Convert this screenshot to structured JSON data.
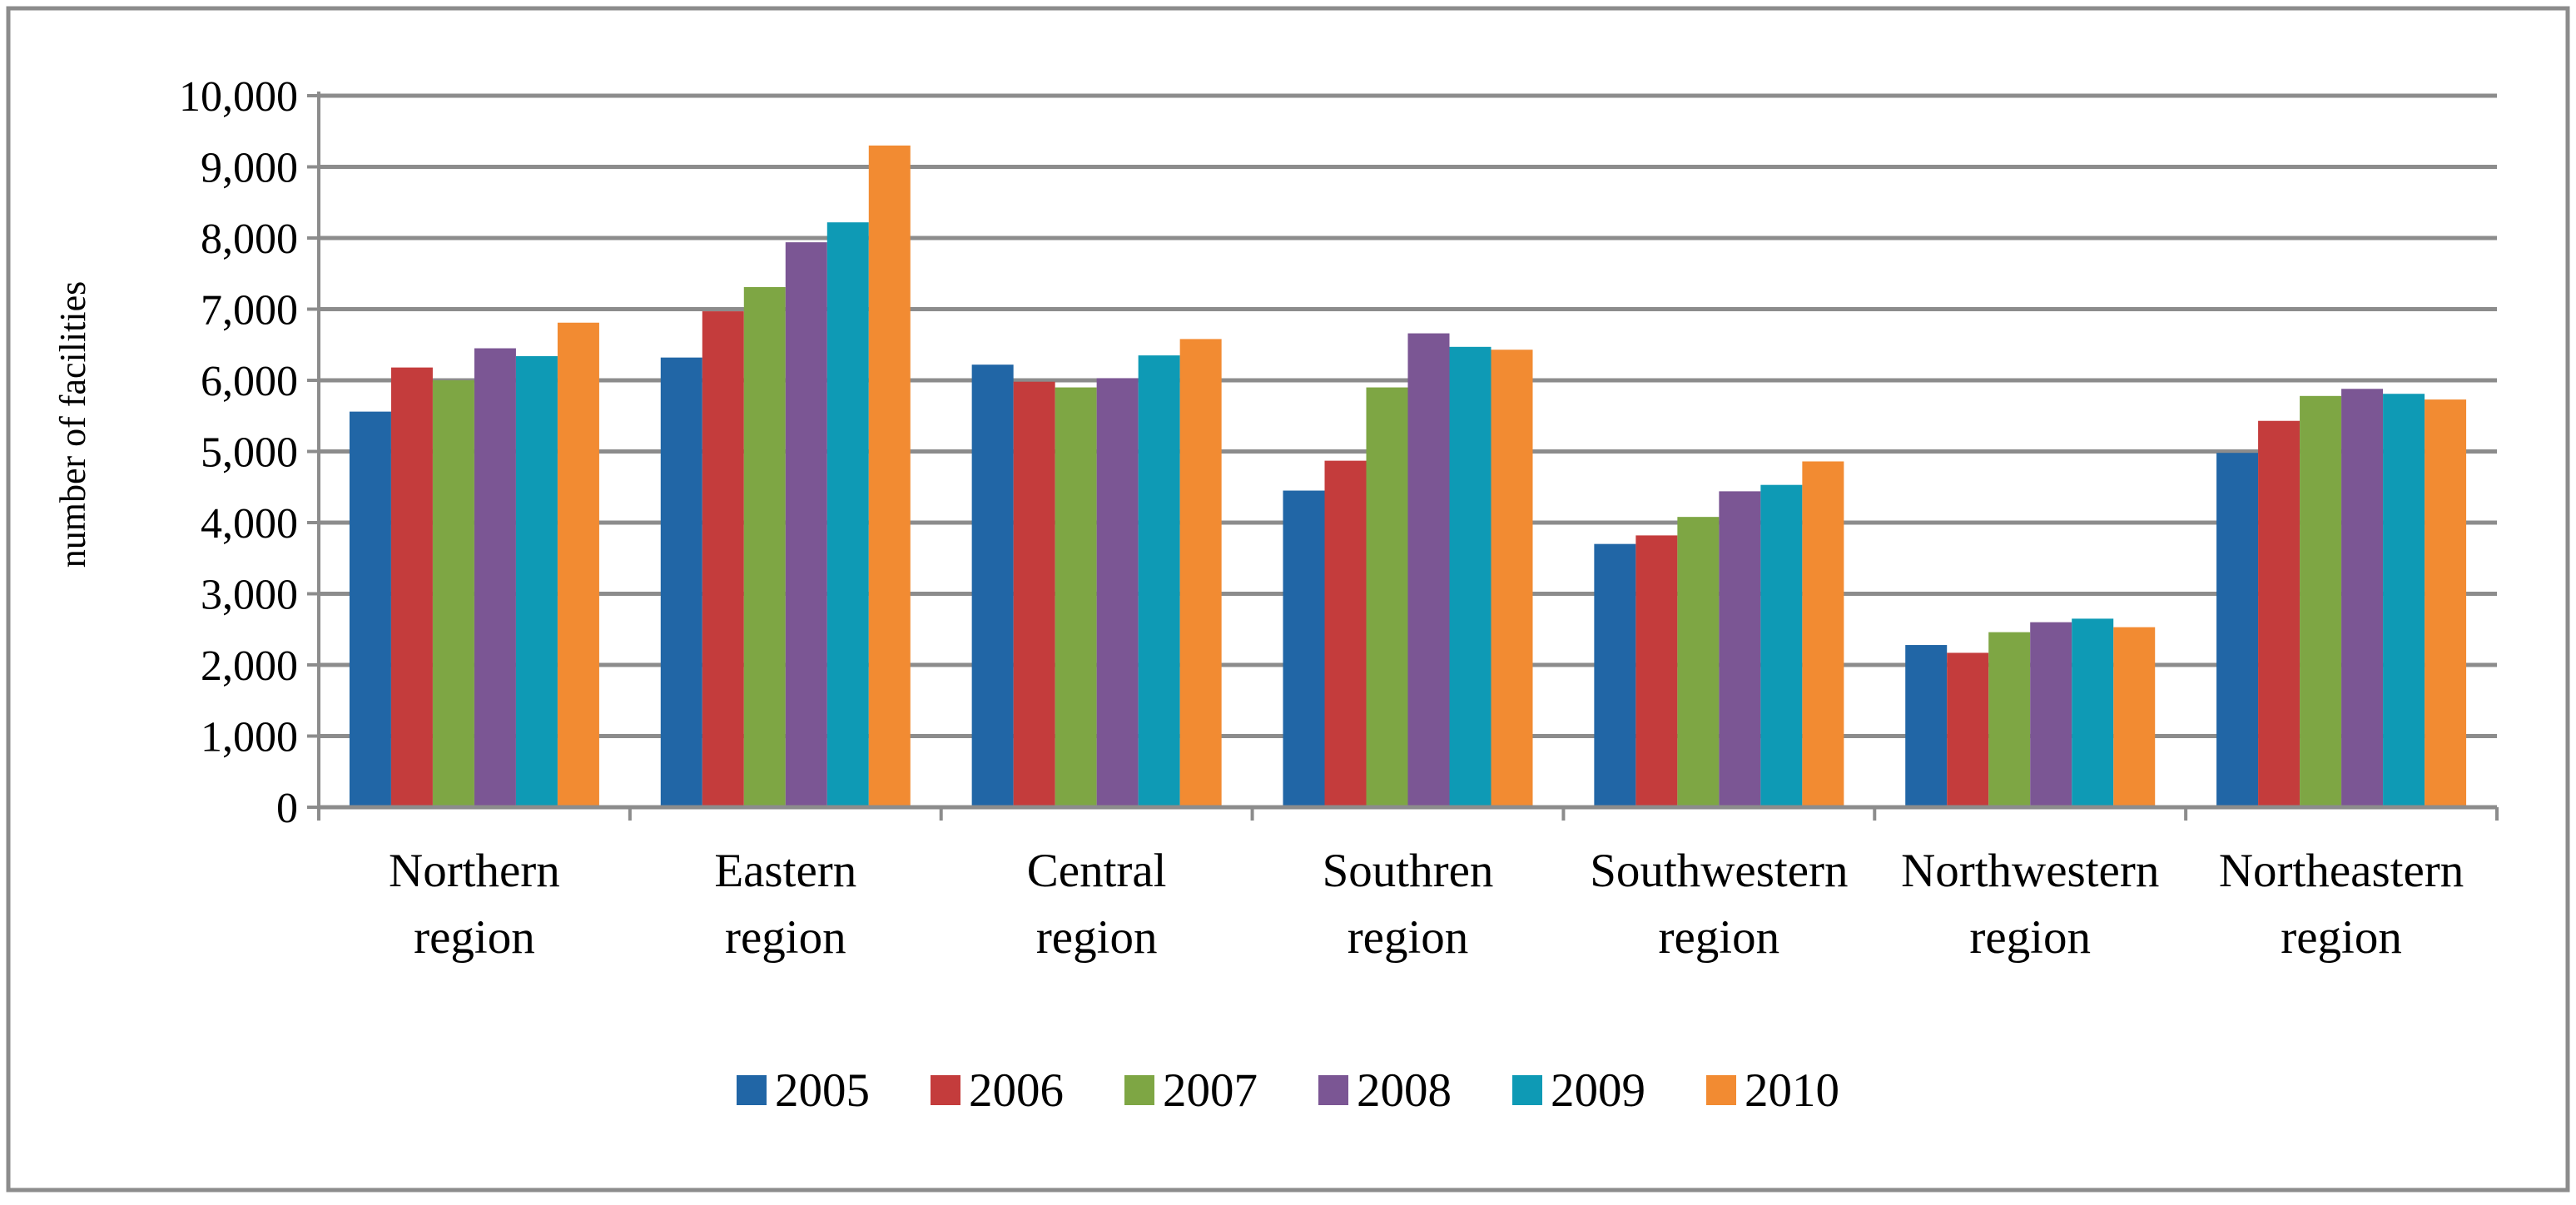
{
  "chart_data": {
    "type": "bar",
    "title": "",
    "xlabel": "",
    "ylabel": "number of facilities",
    "ylim": [
      0,
      10000
    ],
    "y_ticks": [
      0,
      1000,
      2000,
      3000,
      4000,
      5000,
      6000,
      7000,
      8000,
      9000,
      10000
    ],
    "y_tick_labels": [
      "0",
      "1,000",
      "2,000",
      "3,000",
      "4,000",
      "5,000",
      "6,000",
      "7,000",
      "8,000",
      "9,000",
      "10,000"
    ],
    "grid": true,
    "legend_position": "bottom",
    "categories": [
      [
        "Northern",
        "region"
      ],
      [
        "Eastern",
        "region"
      ],
      [
        "Central",
        "region"
      ],
      [
        "Southren",
        "region"
      ],
      [
        "Southwestern",
        "region"
      ],
      [
        "Northwestern",
        "region"
      ],
      [
        "Northeastern",
        "region"
      ]
    ],
    "series": [
      {
        "name": "2005",
        "color": "#2166A6",
        "values": [
          5560,
          6320,
          6220,
          4450,
          3700,
          2280,
          4980
        ]
      },
      {
        "name": "2006",
        "color": "#C43C3C",
        "values": [
          6180,
          6970,
          5980,
          4870,
          3820,
          2170,
          5430
        ]
      },
      {
        "name": "2007",
        "color": "#7EA644",
        "values": [
          6000,
          7310,
          5900,
          5900,
          4080,
          2460,
          5780
        ]
      },
      {
        "name": "2008",
        "color": "#7B5694",
        "values": [
          6450,
          7940,
          6030,
          6660,
          4440,
          2600,
          5880
        ]
      },
      {
        "name": "2009",
        "color": "#0E9AB5",
        "values": [
          6340,
          8220,
          6350,
          6470,
          4530,
          2650,
          5810
        ]
      },
      {
        "name": "2010",
        "color": "#F28B32",
        "values": [
          6810,
          9300,
          6580,
          6430,
          4860,
          2530,
          5730
        ]
      }
    ]
  }
}
